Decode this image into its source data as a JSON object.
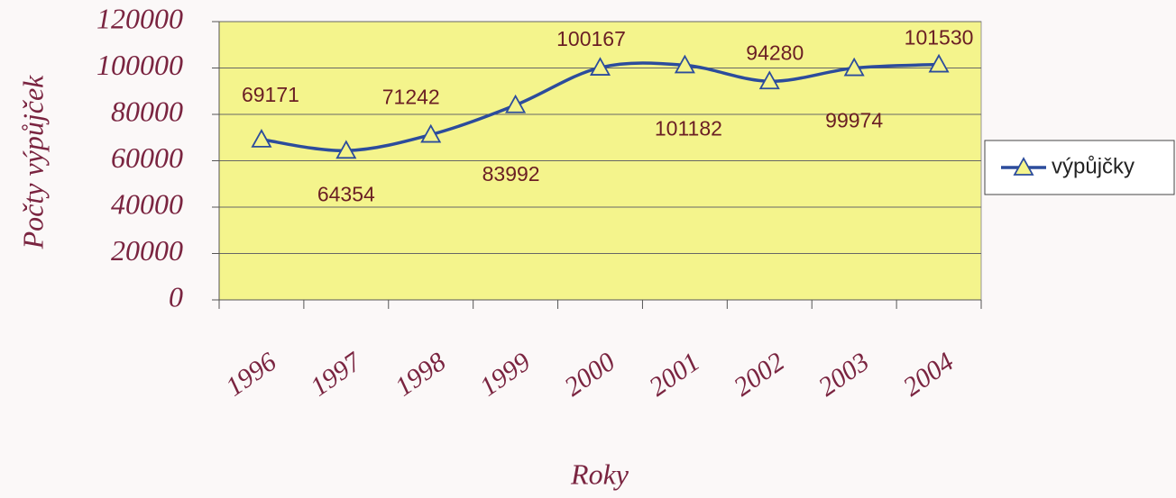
{
  "chart_data": {
    "type": "line",
    "y_label": "Počty výpůjček",
    "x_label": "Roky",
    "categories": [
      "1996",
      "1997",
      "1998",
      "1999",
      "2000",
      "2001",
      "2002",
      "2003",
      "2004"
    ],
    "series": [
      {
        "name": "výpůjčky",
        "color": "#2c4c9c",
        "values": [
          69171,
          64354,
          71242,
          83992,
          100167,
          101182,
          94280,
          99974,
          101530
        ]
      }
    ],
    "ylim": [
      0,
      120000
    ],
    "yticks": [
      0,
      20000,
      40000,
      60000,
      80000,
      100000,
      120000
    ],
    "grid": true,
    "plot_color": "#f4f48c",
    "legend": "right",
    "smooth": true
  }
}
